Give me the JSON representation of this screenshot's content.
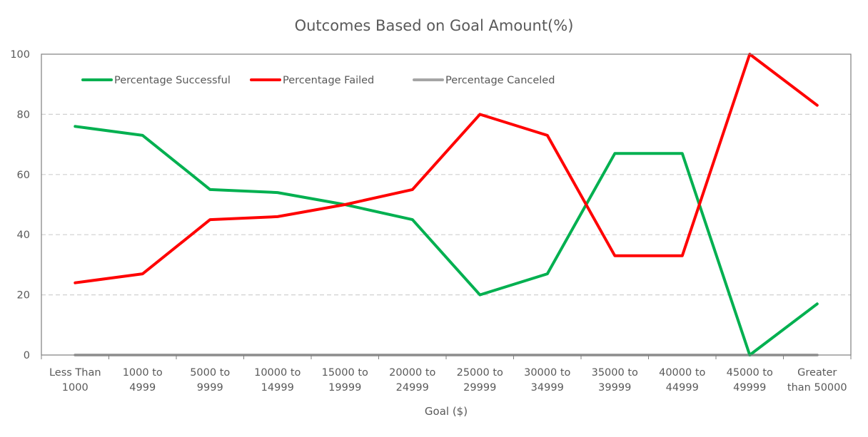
{
  "chart_data": {
    "type": "line",
    "title": "Outcomes Based on Goal Amount(%)",
    "xlabel": "Goal ($)",
    "ylabel": "",
    "ylim": [
      0,
      100
    ],
    "yticks": [
      "0",
      "20",
      "40",
      "60",
      "80",
      "100"
    ],
    "grid": "horizontal dashed",
    "legend_position": "top-left inside plot",
    "categories": [
      [
        "Less Than",
        "1000"
      ],
      [
        "1000 to",
        "4999"
      ],
      [
        "5000 to",
        "9999"
      ],
      [
        "10000 to",
        "14999"
      ],
      [
        "15000 to",
        "19999"
      ],
      [
        "20000 to",
        "24999"
      ],
      [
        "25000 to",
        "29999"
      ],
      [
        "30000 to",
        "34999"
      ],
      [
        "35000 to",
        "39999"
      ],
      [
        "40000 to",
        "44999"
      ],
      [
        "45000 to",
        "49999"
      ],
      [
        "Greater",
        "than 50000"
      ]
    ],
    "series": [
      {
        "name": "Percentage Successful",
        "color": "#00B050",
        "values": [
          76,
          73,
          55,
          54,
          50,
          45,
          20,
          27,
          67,
          67,
          0,
          17
        ]
      },
      {
        "name": "Percentage Failed",
        "color": "#FF0000",
        "values": [
          24,
          27,
          45,
          46,
          50,
          55,
          80,
          73,
          33,
          33,
          100,
          83
        ]
      },
      {
        "name": "Percentage Canceled",
        "color": "#A5A5A5",
        "values": [
          0,
          0,
          0,
          0,
          0,
          0,
          0,
          0,
          0,
          0,
          0,
          0
        ]
      }
    ]
  }
}
